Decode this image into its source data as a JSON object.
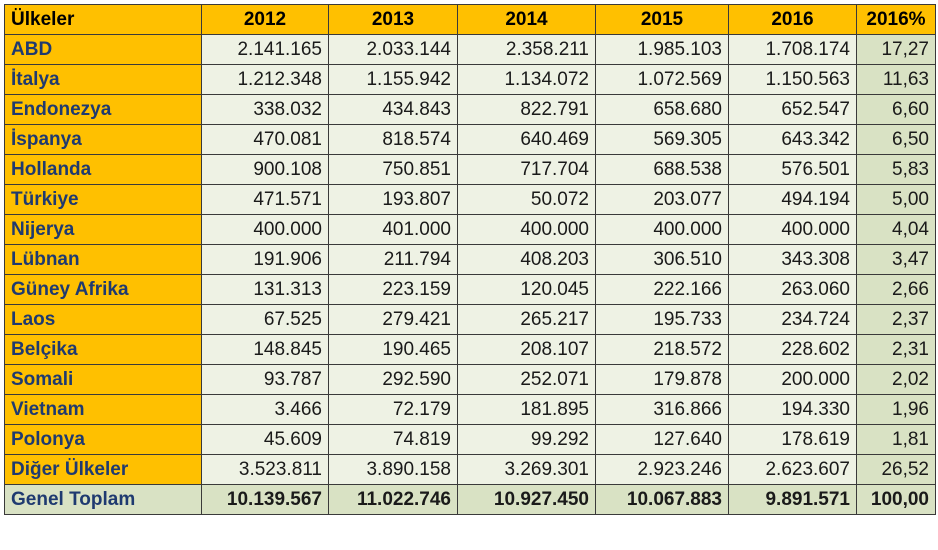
{
  "table": {
    "headers": [
      "Ülkeler",
      "2012",
      "2013",
      "2014",
      "2015",
      "2016",
      "2016%"
    ],
    "rows": [
      {
        "country": "ABD",
        "values": [
          "2.141.165",
          "2.033.144",
          "2.358.211",
          "1.985.103",
          "1.708.174"
        ],
        "pct": "17,27"
      },
      {
        "country": "İtalya",
        "values": [
          "1.212.348",
          "1.155.942",
          "1.134.072",
          "1.072.569",
          "1.150.563"
        ],
        "pct": "11,63"
      },
      {
        "country": "Endonezya",
        "values": [
          "338.032",
          "434.843",
          "822.791",
          "658.680",
          "652.547"
        ],
        "pct": "6,60"
      },
      {
        "country": "İspanya",
        "values": [
          "470.081",
          "818.574",
          "640.469",
          "569.305",
          "643.342"
        ],
        "pct": "6,50"
      },
      {
        "country": "Hollanda",
        "values": [
          "900.108",
          "750.851",
          "717.704",
          "688.538",
          "576.501"
        ],
        "pct": "5,83"
      },
      {
        "country": "Türkiye",
        "values": [
          "471.571",
          "193.807",
          "50.072",
          "203.077",
          "494.194"
        ],
        "pct": "5,00"
      },
      {
        "country": "Nijerya",
        "values": [
          "400.000",
          "401.000",
          "400.000",
          "400.000",
          "400.000"
        ],
        "pct": "4,04"
      },
      {
        "country": "Lübnan",
        "values": [
          "191.906",
          "211.794",
          "408.203",
          "306.510",
          "343.308"
        ],
        "pct": "3,47"
      },
      {
        "country": "Güney Afrika",
        "values": [
          "131.313",
          "223.159",
          "120.045",
          "222.166",
          "263.060"
        ],
        "pct": "2,66"
      },
      {
        "country": "Laos",
        "values": [
          "67.525",
          "279.421",
          "265.217",
          "195.733",
          "234.724"
        ],
        "pct": "2,37"
      },
      {
        "country": "Belçika",
        "values": [
          "148.845",
          "190.465",
          "208.107",
          "218.572",
          "228.602"
        ],
        "pct": "2,31"
      },
      {
        "country": "Somali",
        "values": [
          "93.787",
          "292.590",
          "252.071",
          "179.878",
          "200.000"
        ],
        "pct": "2,02"
      },
      {
        "country": "Vietnam",
        "values": [
          "3.466",
          "72.179",
          "181.895",
          "316.866",
          "194.330"
        ],
        "pct": "1,96"
      },
      {
        "country": "Polonya",
        "values": [
          "45.609",
          "74.819",
          "99.292",
          "127.640",
          "178.619"
        ],
        "pct": "1,81"
      },
      {
        "country": "Diğer Ülkeler",
        "values": [
          "3.523.811",
          "3.890.158",
          "3.269.301",
          "2.923.246",
          "2.623.607"
        ],
        "pct": "26,52"
      }
    ],
    "total": {
      "country": "Genel Toplam",
      "values": [
        "10.139.567",
        "11.022.746",
        "10.927.450",
        "10.067.883",
        "9.891.571"
      ],
      "pct": "100,00"
    }
  },
  "colors": {
    "header_bg": "#ffc000",
    "name_bg": "#ffc000",
    "name_text": "#1f3a70",
    "cell_bg": "#eef2e4",
    "pct_bg": "#d9e2c4"
  }
}
